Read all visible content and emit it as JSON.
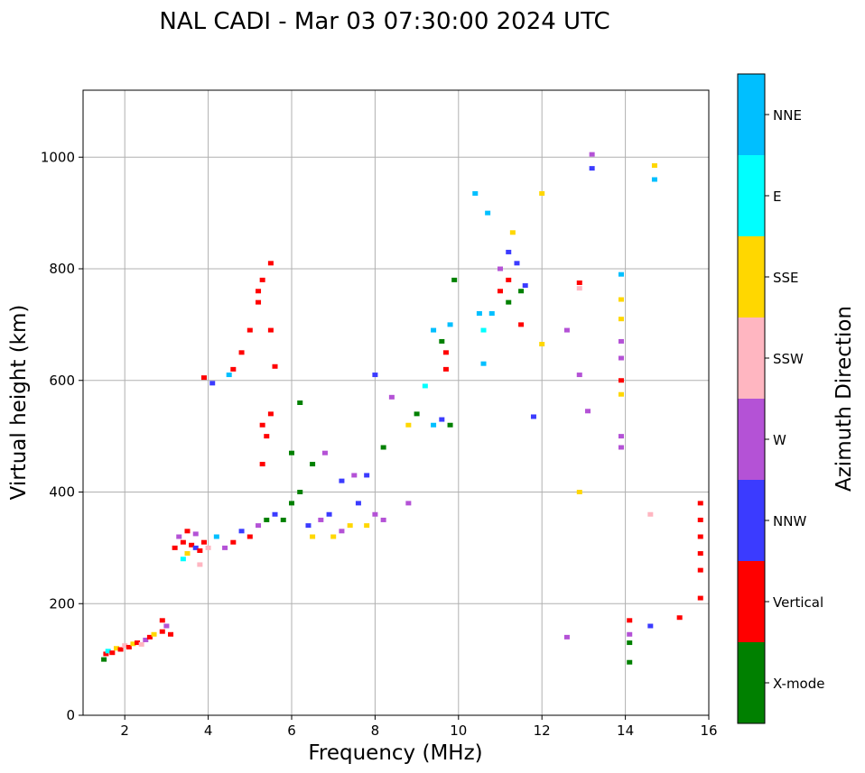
{
  "chart_data": {
    "type": "scatter",
    "title": "NAL CADI - Mar 03 07:30:00 2024 UTC",
    "xlabel": "Frequency (MHz)",
    "ylabel": "Virtual height (km)",
    "xlim": [
      1,
      16
    ],
    "ylim": [
      0,
      1120
    ],
    "xticks": [
      2,
      4,
      6,
      8,
      10,
      12,
      14,
      16
    ],
    "yticks": [
      0,
      200,
      400,
      600,
      800,
      1000
    ],
    "grid": true,
    "colorbar": {
      "label": "Azimuth Direction",
      "categories": [
        {
          "name": "X-mode",
          "color": "#008000"
        },
        {
          "name": "Vertical",
          "color": "#ff0000"
        },
        {
          "name": "NNW",
          "color": "#3b3bff"
        },
        {
          "name": "W",
          "color": "#b452d6"
        },
        {
          "name": "SSW",
          "color": "#ffb6c1"
        },
        {
          "name": "SSE",
          "color": "#ffd700"
        },
        {
          "name": "E",
          "color": "#00ffff"
        },
        {
          "name": "NNE",
          "color": "#00bfff"
        }
      ]
    },
    "points": [
      [
        1.5,
        100,
        "X-mode"
      ],
      [
        1.55,
        110,
        "Vertical"
      ],
      [
        1.6,
        115,
        "E"
      ],
      [
        1.7,
        112,
        "Vertical"
      ],
      [
        1.8,
        120,
        "SSE"
      ],
      [
        1.9,
        118,
        "Vertical"
      ],
      [
        2.0,
        125,
        "SSW"
      ],
      [
        2.1,
        122,
        "Vertical"
      ],
      [
        2.2,
        128,
        "SSE"
      ],
      [
        2.3,
        130,
        "Vertical"
      ],
      [
        2.4,
        127,
        "SSW"
      ],
      [
        2.5,
        135,
        "W"
      ],
      [
        2.6,
        140,
        "Vertical"
      ],
      [
        2.7,
        145,
        "SSE"
      ],
      [
        2.9,
        150,
        "Vertical"
      ],
      [
        3.0,
        160,
        "W"
      ],
      [
        3.1,
        145,
        "Vertical"
      ],
      [
        2.9,
        170,
        "Vertical"
      ],
      [
        3.2,
        300,
        "Vertical"
      ],
      [
        3.3,
        320,
        "W"
      ],
      [
        3.4,
        310,
        "Vertical"
      ],
      [
        3.5,
        290,
        "SSE"
      ],
      [
        3.6,
        305,
        "Vertical"
      ],
      [
        3.7,
        300,
        "NNW"
      ],
      [
        3.8,
        295,
        "Vertical"
      ],
      [
        3.9,
        310,
        "Vertical"
      ],
      [
        4.0,
        300,
        "SSW"
      ],
      [
        3.5,
        330,
        "Vertical"
      ],
      [
        3.7,
        325,
        "W"
      ],
      [
        3.4,
        280,
        "E"
      ],
      [
        3.8,
        270,
        "SSW"
      ],
      [
        4.2,
        320,
        "NNE"
      ],
      [
        4.4,
        300,
        "W"
      ],
      [
        4.6,
        310,
        "Vertical"
      ],
      [
        4.8,
        330,
        "NNW"
      ],
      [
        5.0,
        320,
        "Vertical"
      ],
      [
        5.2,
        340,
        "W"
      ],
      [
        5.4,
        350,
        "X-mode"
      ],
      [
        5.6,
        360,
        "NNW"
      ],
      [
        5.8,
        350,
        "X-mode"
      ],
      [
        6.0,
        380,
        "X-mode"
      ],
      [
        6.2,
        400,
        "X-mode"
      ],
      [
        6.4,
        340,
        "NNW"
      ],
      [
        6.5,
        320,
        "SSE"
      ],
      [
        6.7,
        350,
        "W"
      ],
      [
        6.9,
        360,
        "NNW"
      ],
      [
        7.0,
        320,
        "SSE"
      ],
      [
        7.2,
        330,
        "W"
      ],
      [
        7.4,
        340,
        "SSE"
      ],
      [
        7.6,
        380,
        "NNW"
      ],
      [
        7.8,
        340,
        "SSE"
      ],
      [
        8.0,
        360,
        "W"
      ],
      [
        8.2,
        350,
        "W"
      ],
      [
        8.8,
        380,
        "W"
      ],
      [
        6.5,
        450,
        "X-mode"
      ],
      [
        6.8,
        470,
        "W"
      ],
      [
        7.2,
        420,
        "NNW"
      ],
      [
        7.5,
        430,
        "W"
      ],
      [
        7.8,
        430,
        "NNW"
      ],
      [
        8.2,
        480,
        "X-mode"
      ],
      [
        5.3,
        450,
        "Vertical"
      ],
      [
        5.4,
        500,
        "Vertical"
      ],
      [
        5.5,
        540,
        "Vertical"
      ],
      [
        5.3,
        520,
        "Vertical"
      ],
      [
        6.0,
        470,
        "X-mode"
      ],
      [
        6.2,
        560,
        "X-mode"
      ],
      [
        4.6,
        620,
        "Vertical"
      ],
      [
        4.8,
        650,
        "Vertical"
      ],
      [
        5.0,
        690,
        "Vertical"
      ],
      [
        5.2,
        740,
        "Vertical"
      ],
      [
        5.3,
        780,
        "Vertical"
      ],
      [
        5.5,
        810,
        "Vertical"
      ],
      [
        3.9,
        605,
        "Vertical"
      ],
      [
        4.1,
        595,
        "NNW"
      ],
      [
        4.5,
        610,
        "NNE"
      ],
      [
        5.6,
        625,
        "Vertical"
      ],
      [
        5.5,
        690,
        "Vertical"
      ],
      [
        5.2,
        760,
        "Vertical"
      ],
      [
        8.0,
        610,
        "NNW"
      ],
      [
        8.4,
        570,
        "W"
      ],
      [
        8.8,
        520,
        "SSE"
      ],
      [
        9.0,
        540,
        "X-mode"
      ],
      [
        9.2,
        590,
        "E"
      ],
      [
        9.4,
        520,
        "NNE"
      ],
      [
        9.6,
        530,
        "NNW"
      ],
      [
        9.8,
        520,
        "X-mode"
      ],
      [
        9.4,
        690,
        "NNE"
      ],
      [
        9.6,
        670,
        "X-mode"
      ],
      [
        9.8,
        700,
        "NNE"
      ],
      [
        9.9,
        780,
        "X-mode"
      ],
      [
        9.7,
        650,
        "Vertical"
      ],
      [
        9.7,
        620,
        "Vertical"
      ],
      [
        10.6,
        690,
        "E"
      ],
      [
        10.5,
        720,
        "NNE"
      ],
      [
        10.6,
        630,
        "NNE"
      ],
      [
        10.8,
        720,
        "NNE"
      ],
      [
        10.7,
        900,
        "NNE"
      ],
      [
        10.4,
        935,
        "NNE"
      ],
      [
        11.0,
        760,
        "Vertical"
      ],
      [
        11.0,
        800,
        "W"
      ],
      [
        11.2,
        780,
        "Vertical"
      ],
      [
        11.2,
        740,
        "X-mode"
      ],
      [
        11.4,
        810,
        "NNW"
      ],
      [
        11.5,
        760,
        "X-mode"
      ],
      [
        11.2,
        830,
        "NNW"
      ],
      [
        11.3,
        865,
        "SSE"
      ],
      [
        11.6,
        770,
        "NNW"
      ],
      [
        11.5,
        700,
        "Vertical"
      ],
      [
        11.8,
        535,
        "NNW"
      ],
      [
        12.0,
        665,
        "SSE"
      ],
      [
        12.0,
        935,
        "SSE"
      ],
      [
        12.6,
        690,
        "W"
      ],
      [
        12.9,
        775,
        "Vertical"
      ],
      [
        12.9,
        765,
        "SSW"
      ],
      [
        12.9,
        610,
        "W"
      ],
      [
        13.1,
        545,
        "W"
      ],
      [
        12.9,
        400,
        "SSE"
      ],
      [
        12.6,
        140,
        "W"
      ],
      [
        13.2,
        1005,
        "W"
      ],
      [
        13.2,
        980,
        "NNW"
      ],
      [
        13.9,
        790,
        "NNE"
      ],
      [
        13.9,
        745,
        "SSE"
      ],
      [
        13.9,
        710,
        "SSE"
      ],
      [
        13.9,
        670,
        "W"
      ],
      [
        13.9,
        640,
        "W"
      ],
      [
        13.9,
        600,
        "Vertical"
      ],
      [
        13.9,
        575,
        "SSE"
      ],
      [
        13.9,
        500,
        "W"
      ],
      [
        13.9,
        480,
        "W"
      ],
      [
        14.1,
        170,
        "Vertical"
      ],
      [
        14.1,
        145,
        "W"
      ],
      [
        14.1,
        130,
        "X-mode"
      ],
      [
        14.1,
        95,
        "X-mode"
      ],
      [
        14.6,
        160,
        "NNW"
      ],
      [
        14.6,
        360,
        "SSW"
      ],
      [
        14.7,
        985,
        "SSE"
      ],
      [
        14.7,
        960,
        "NNE"
      ],
      [
        15.3,
        175,
        "Vertical"
      ],
      [
        15.8,
        380,
        "Vertical"
      ],
      [
        15.8,
        350,
        "Vertical"
      ],
      [
        15.8,
        320,
        "Vertical"
      ],
      [
        15.8,
        290,
        "Vertical"
      ],
      [
        15.8,
        260,
        "Vertical"
      ],
      [
        15.8,
        210,
        "Vertical"
      ]
    ]
  }
}
